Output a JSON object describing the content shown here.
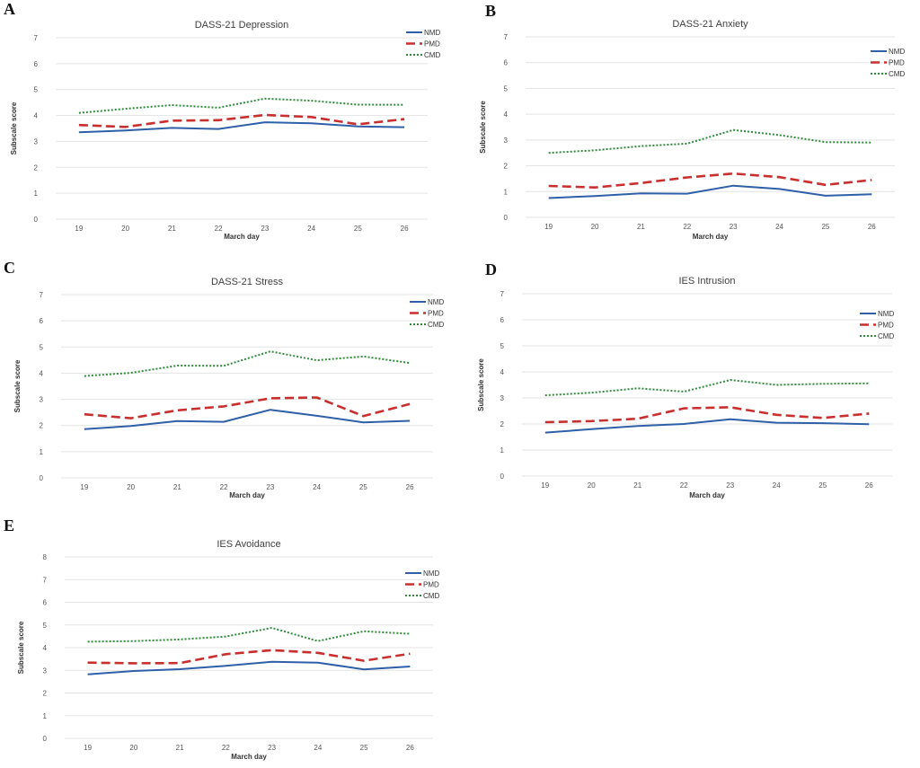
{
  "colors": {
    "NMD": "#2e5fa7",
    "PMD": "#c8302f",
    "CMD": "#2e8b3a"
  },
  "chart_data": [
    {
      "panel": "A",
      "type": "line",
      "title": "DASS-21 Depression",
      "xlabel": "March day",
      "ylabel": "Subscale score",
      "categories": [
        "19",
        "20",
        "21",
        "22",
        "23",
        "24",
        "25",
        "26"
      ],
      "ylim": [
        0,
        7
      ],
      "yticks": [
        0,
        1,
        2,
        3,
        4,
        5,
        6,
        7
      ],
      "legend": "top-right",
      "series": [
        {
          "name": "NMD",
          "style": "solid",
          "values": [
            3.35,
            3.42,
            3.52,
            3.48,
            3.74,
            3.7,
            3.58,
            3.55
          ]
        },
        {
          "name": "PMD",
          "style": "dashed",
          "values": [
            3.63,
            3.56,
            3.8,
            3.82,
            4.02,
            3.94,
            3.66,
            3.86
          ]
        },
        {
          "name": "CMD",
          "style": "dotted",
          "values": [
            4.1,
            4.26,
            4.4,
            4.3,
            4.65,
            4.57,
            4.42,
            4.41
          ]
        }
      ]
    },
    {
      "panel": "B",
      "type": "line",
      "title": "DASS-21 Anxiety",
      "xlabel": "March day",
      "ylabel": "Subscale score",
      "categories": [
        "19",
        "20",
        "21",
        "22",
        "23",
        "24",
        "25",
        "26"
      ],
      "ylim": [
        0,
        7
      ],
      "yticks": [
        0,
        1,
        2,
        3,
        4,
        5,
        6,
        7
      ],
      "legend": "top-right",
      "series": [
        {
          "name": "NMD",
          "style": "solid",
          "values": [
            0.75,
            0.83,
            0.93,
            0.92,
            1.23,
            1.1,
            0.84,
            0.9
          ]
        },
        {
          "name": "PMD",
          "style": "dashed",
          "values": [
            1.22,
            1.16,
            1.33,
            1.55,
            1.7,
            1.56,
            1.26,
            1.45
          ]
        },
        {
          "name": "CMD",
          "style": "dotted",
          "values": [
            2.5,
            2.6,
            2.76,
            2.86,
            3.39,
            3.19,
            2.92,
            2.9
          ]
        }
      ]
    },
    {
      "panel": "C",
      "type": "line",
      "title": "DASS-21 Stress",
      "xlabel": "March day",
      "ylabel": "Subscale score",
      "categories": [
        "19",
        "20",
        "21",
        "22",
        "23",
        "24",
        "25",
        "26"
      ],
      "ylim": [
        0,
        7
      ],
      "yticks": [
        0,
        1,
        2,
        3,
        4,
        5,
        6,
        7
      ],
      "legend": "top-right",
      "series": [
        {
          "name": "NMD",
          "style": "solid",
          "values": [
            1.86,
            1.98,
            2.17,
            2.14,
            2.6,
            2.37,
            2.12,
            2.18
          ]
        },
        {
          "name": "PMD",
          "style": "dashed",
          "values": [
            2.43,
            2.28,
            2.58,
            2.73,
            3.04,
            3.07,
            2.36,
            2.82
          ]
        },
        {
          "name": "CMD",
          "style": "dotted",
          "values": [
            3.89,
            4.01,
            4.29,
            4.28,
            4.83,
            4.49,
            4.64,
            4.39
          ]
        }
      ]
    },
    {
      "panel": "D",
      "type": "line",
      "title": "IES Intrusion",
      "xlabel": "March day",
      "ylabel": "Subscale score",
      "categories": [
        "19",
        "20",
        "21",
        "22",
        "23",
        "24",
        "25",
        "26"
      ],
      "ylim": [
        0,
        7
      ],
      "yticks": [
        0,
        1,
        2,
        3,
        4,
        5,
        6,
        7
      ],
      "legend": "top-right",
      "series": [
        {
          "name": "NMD",
          "style": "solid",
          "values": [
            1.67,
            1.8,
            1.92,
            2.0,
            2.18,
            2.05,
            2.03,
            1.99
          ]
        },
        {
          "name": "PMD",
          "style": "dashed",
          "values": [
            2.07,
            2.11,
            2.2,
            2.6,
            2.64,
            2.35,
            2.23,
            2.4
          ]
        },
        {
          "name": "CMD",
          "style": "dotted",
          "values": [
            3.1,
            3.2,
            3.37,
            3.24,
            3.69,
            3.5,
            3.54,
            3.56
          ]
        }
      ]
    },
    {
      "panel": "E",
      "type": "line",
      "title": "IES Avoidance",
      "xlabel": "March day",
      "ylabel": "Subscale score",
      "categories": [
        "19",
        "20",
        "21",
        "22",
        "23",
        "24",
        "25",
        "26"
      ],
      "ylim": [
        0,
        8
      ],
      "yticks": [
        0,
        1,
        2,
        3,
        4,
        5,
        6,
        7,
        8
      ],
      "legend": "top-right",
      "series": [
        {
          "name": "NMD",
          "style": "solid",
          "values": [
            2.82,
            2.97,
            3.05,
            3.2,
            3.38,
            3.34,
            3.04,
            3.17
          ]
        },
        {
          "name": "PMD",
          "style": "dashed",
          "values": [
            3.34,
            3.31,
            3.32,
            3.71,
            3.89,
            3.77,
            3.42,
            3.73
          ]
        },
        {
          "name": "CMD",
          "style": "dotted",
          "values": [
            4.26,
            4.29,
            4.36,
            4.49,
            4.87,
            4.29,
            4.72,
            4.61
          ]
        }
      ]
    }
  ]
}
